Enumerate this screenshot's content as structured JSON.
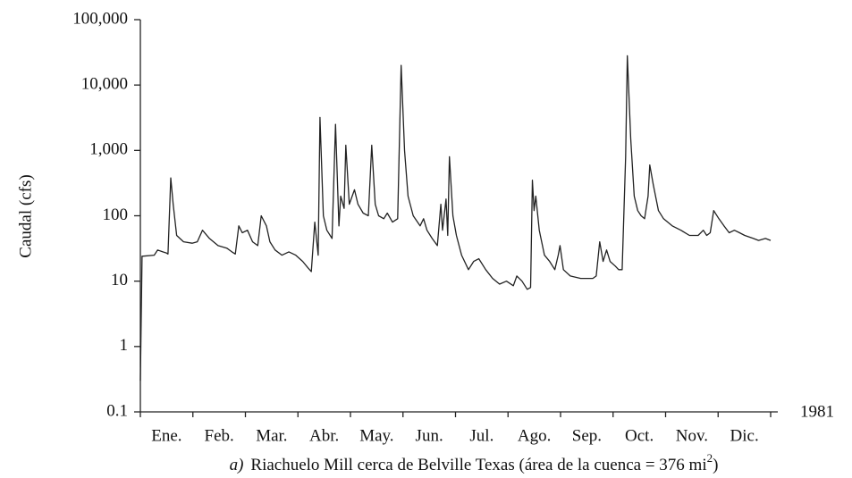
{
  "chart_data": {
    "type": "line",
    "y_label": "Caudal (cfs)",
    "year_label": "1981",
    "caption_label": "a)",
    "caption": "Riachuelo Mill cerca de Belville Texas (área de la cuenca = 376 mi",
    "caption_sup": "2",
    "caption_end": ")",
    "categories": [
      "Ene.",
      "Feb.",
      "Mar.",
      "Abr.",
      "May.",
      "Jun.",
      "Jul.",
      "Ago.",
      "Sep.",
      "Oct.",
      "Nov.",
      "Dic."
    ],
    "log_scale": true,
    "color": "#222222",
    "xlim": [
      0,
      365
    ],
    "ylim": [
      0.1,
      100000
    ],
    "yticks": [
      0.1,
      1,
      10,
      100,
      {
        "value": 1000,
        "label": "1,000"
      },
      {
        "value": 10000,
        "label": "10,000"
      },
      {
        "value": 100000,
        "label": "100,000"
      }
    ],
    "x": [
      0,
      1,
      8,
      10,
      13,
      15,
      16,
      17.6,
      19,
      21,
      25,
      30,
      33,
      36,
      40,
      45,
      50,
      53,
      55,
      57,
      59,
      62,
      65,
      68,
      70,
      73,
      75,
      78,
      82,
      86,
      90,
      94,
      97,
      99,
      101,
      103,
      104,
      106,
      108,
      111,
      113,
      115,
      116,
      118,
      119,
      121,
      124,
      126,
      129,
      132,
      134,
      136,
      138,
      141,
      143,
      146,
      149,
      151,
      153,
      155,
      158,
      162,
      164,
      166,
      169,
      172,
      174,
      175,
      177,
      178,
      179,
      181,
      183,
      186,
      190,
      193,
      196,
      200,
      204,
      208,
      212,
      216,
      218,
      221,
      224,
      226,
      227,
      228,
      229,
      231,
      234,
      237,
      240,
      242,
      243,
      245,
      249,
      255,
      262,
      264,
      266,
      268,
      270,
      272,
      275,
      277,
      279,
      281,
      282,
      284,
      286,
      288,
      290,
      292,
      294,
      295,
      297,
      300,
      303,
      308,
      313,
      318,
      323,
      326,
      328,
      330,
      332,
      335,
      338,
      341,
      344,
      347,
      350,
      355,
      358,
      362,
      365
    ],
    "values": [
      0.3,
      24,
      25,
      30,
      28,
      27,
      26,
      380,
      150,
      50,
      40,
      38,
      40,
      60,
      45,
      35,
      32,
      28,
      26,
      70,
      55,
      60,
      40,
      35,
      100,
      70,
      40,
      30,
      25,
      28,
      25,
      20,
      16,
      14,
      80,
      25,
      3200,
      100,
      60,
      45,
      2500,
      70,
      200,
      130,
      1200,
      150,
      250,
      150,
      110,
      100,
      1200,
      150,
      100,
      90,
      110,
      80,
      90,
      20000,
      1000,
      200,
      100,
      70,
      90,
      60,
      45,
      35,
      150,
      60,
      180,
      50,
      800,
      100,
      50,
      25,
      15,
      20,
      22,
      15,
      11,
      9,
      10,
      8.5,
      12,
      10,
      7.5,
      8,
      350,
      120,
      200,
      60,
      25,
      20,
      15,
      25,
      35,
      15,
      12,
      11,
      11,
      12,
      40,
      20,
      30,
      20,
      17,
      15,
      15,
      800,
      28000,
      1500,
      200,
      120,
      100,
      90,
      200,
      600,
      300,
      120,
      90,
      70,
      60,
      50,
      50,
      60,
      50,
      55,
      120,
      90,
      70,
      55,
      60,
      55,
      50,
      45,
      42,
      45,
      42
    ]
  }
}
